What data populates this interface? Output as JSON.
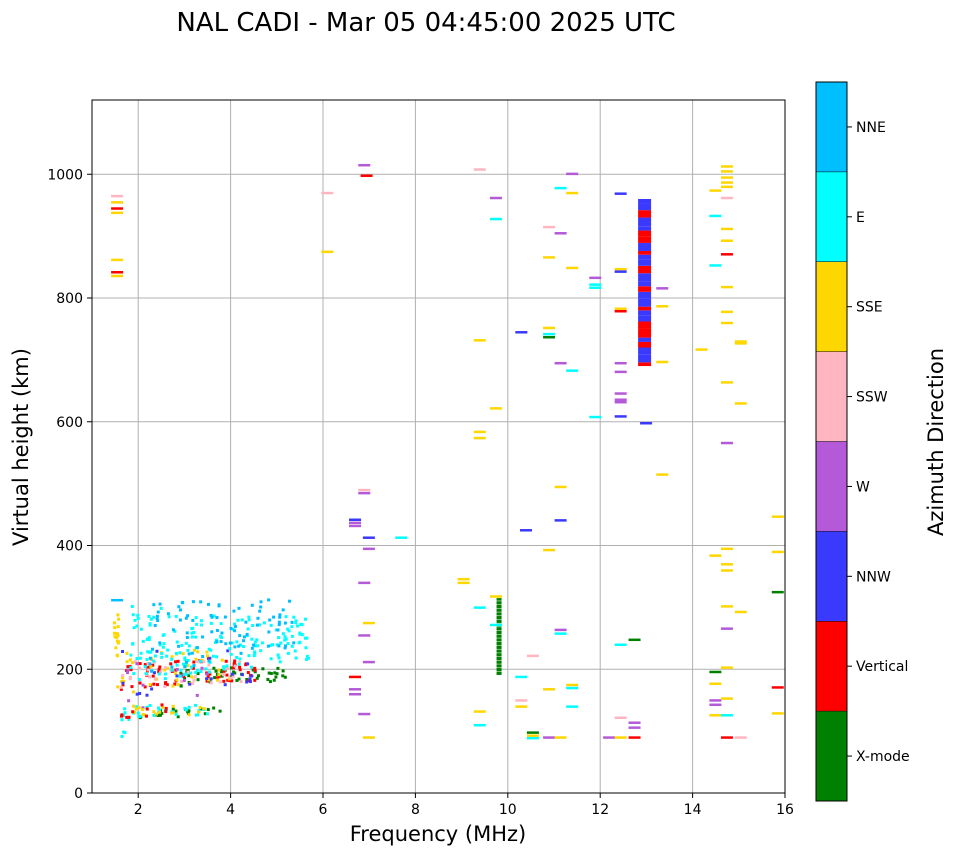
{
  "chart_data": {
    "type": "scatter",
    "title": "NAL CADI - Mar 05 04:45:00 2025 UTC",
    "xlabel": "Frequency (MHz)",
    "ylabel": "Virtual height (km)",
    "xlim": [
      1,
      16
    ],
    "ylim": [
      0,
      1120
    ],
    "xticks": [
      2,
      4,
      6,
      8,
      10,
      12,
      14,
      16
    ],
    "yticks": [
      0,
      200,
      400,
      600,
      800,
      1000
    ],
    "grid": true,
    "colorbar": {
      "label": "Azimuth Direction",
      "categories": [
        {
          "name": "X-mode",
          "color": "#008000"
        },
        {
          "name": "Vertical",
          "color": "#ff0000"
        },
        {
          "name": "NNW",
          "color": "#3a3aff"
        },
        {
          "name": "W",
          "color": "#b45ad8"
        },
        {
          "name": "SSW",
          "color": "#ffb6c1"
        },
        {
          "name": "SSE",
          "color": "#ffd700"
        },
        {
          "name": "E",
          "color": "#00ffff"
        },
        {
          "name": "NNE",
          "color": "#00bfff"
        }
      ]
    },
    "clusters": [
      {
        "name": "lower-cloud-base",
        "category": "X-mode",
        "x_range": [
          2.8,
          5.4
        ],
        "y_range": [
          168,
          200
        ],
        "count": 45,
        "seed": 11
      },
      {
        "name": "lower-cloud-red",
        "category": "Vertical",
        "x_range": [
          1.6,
          4.6
        ],
        "y_range": [
          160,
          215
        ],
        "count": 70,
        "seed": 12
      },
      {
        "name": "lower-cloud-yellow",
        "category": "SSE",
        "x_range": [
          1.5,
          4.0
        ],
        "y_range": [
          150,
          230
        ],
        "count": 45,
        "seed": 13
      },
      {
        "name": "lower-cloud-pink",
        "category": "SSW",
        "x_range": [
          1.6,
          4.2
        ],
        "y_range": [
          160,
          210
        ],
        "count": 35,
        "seed": 14
      },
      {
        "name": "lower-cloud-nnw",
        "category": "NNW",
        "x_range": [
          1.6,
          4.5
        ],
        "y_range": [
          150,
          230
        ],
        "count": 22,
        "seed": 15
      },
      {
        "name": "lower-cloud-w",
        "category": "W",
        "x_range": [
          1.6,
          3.5
        ],
        "y_range": [
          120,
          210
        ],
        "count": 12,
        "seed": 16
      },
      {
        "name": "upper-trace-e",
        "category": "E",
        "x_range": [
          1.8,
          5.7
        ],
        "y_range": [
          175,
          285
        ],
        "count": 170,
        "seed": 17
      },
      {
        "name": "upper-trace-nne",
        "category": "NNE",
        "x_range": [
          2.2,
          5.4
        ],
        "y_range": [
          190,
          310
        ],
        "count": 90,
        "seed": 18
      },
      {
        "name": "echo-band-low",
        "category": "X-mode",
        "x_range": [
          2.0,
          3.8
        ],
        "y_range": [
          118,
          135
        ],
        "count": 20,
        "seed": 19
      },
      {
        "name": "echo-band-low-e",
        "category": "E",
        "x_range": [
          1.6,
          3.5
        ],
        "y_range": [
          115,
          140
        ],
        "count": 30,
        "seed": 20
      },
      {
        "name": "echo-band-low-yellow",
        "category": "SSE",
        "x_range": [
          1.6,
          3.4
        ],
        "y_range": [
          118,
          138
        ],
        "count": 18,
        "seed": 21
      },
      {
        "name": "echo-band-low-red",
        "category": "Vertical",
        "x_range": [
          1.6,
          2.8
        ],
        "y_range": [
          118,
          140
        ],
        "count": 10,
        "seed": 22
      },
      {
        "name": "left-column",
        "category": "SSE",
        "x_range": [
          1.45,
          1.55
        ],
        "y_range": [
          180,
          290
        ],
        "count": 14,
        "seed": 23
      },
      {
        "name": "left-column-e",
        "category": "E",
        "x_range": [
          1.5,
          1.7
        ],
        "y_range": [
          85,
          100
        ],
        "count": 3,
        "seed": 24
      },
      {
        "name": "scatter-top-e",
        "category": "E",
        "x_range": [
          1.8,
          2.5
        ],
        "y_range": [
          230,
          300
        ],
        "count": 12,
        "seed": 25
      }
    ],
    "column": [
      {
        "category": "Vertical",
        "x": 12.95,
        "y_start": 690,
        "y_end": 960
      },
      {
        "category": "NNW",
        "x": 12.95,
        "y_start": 690,
        "y_end": 960
      }
    ],
    "column_x_mode": {
      "category": "X-mode",
      "x": 9.8,
      "y_start": 190,
      "y_end": 315
    },
    "points": [
      {
        "x": 1.5,
        "y": 965,
        "c": "SSW"
      },
      {
        "x": 1.5,
        "y": 955,
        "c": "SSE"
      },
      {
        "x": 1.5,
        "y": 945,
        "c": "Vertical"
      },
      {
        "x": 1.5,
        "y": 938,
        "c": "SSE"
      },
      {
        "x": 1.5,
        "y": 862,
        "c": "SSE"
      },
      {
        "x": 1.5,
        "y": 842,
        "c": "Vertical"
      },
      {
        "x": 1.5,
        "y": 836,
        "c": "SSE"
      },
      {
        "x": 1.5,
        "y": 312,
        "c": "NNE"
      },
      {
        "x": 6.05,
        "y": 970,
        "c": "SSW"
      },
      {
        "x": 6.05,
        "y": 875,
        "c": "SSE"
      },
      {
        "x": 6.85,
        "y": 1015,
        "c": "W"
      },
      {
        "x": 6.9,
        "y": 998,
        "c": "Vertical"
      },
      {
        "x": 6.85,
        "y": 490,
        "c": "SSW"
      },
      {
        "x": 6.85,
        "y": 485,
        "c": "W"
      },
      {
        "x": 6.65,
        "y": 442,
        "c": "NNW"
      },
      {
        "x": 6.65,
        "y": 437,
        "c": "W"
      },
      {
        "x": 6.65,
        "y": 432,
        "c": "W"
      },
      {
        "x": 6.95,
        "y": 413,
        "c": "NNW"
      },
      {
        "x": 7.65,
        "y": 413,
        "c": "E"
      },
      {
        "x": 6.95,
        "y": 395,
        "c": "W"
      },
      {
        "x": 6.85,
        "y": 340,
        "c": "W"
      },
      {
        "x": 6.95,
        "y": 275,
        "c": "SSE"
      },
      {
        "x": 6.85,
        "y": 255,
        "c": "W"
      },
      {
        "x": 6.95,
        "y": 212,
        "c": "W"
      },
      {
        "x": 6.65,
        "y": 188,
        "c": "Vertical"
      },
      {
        "x": 6.65,
        "y": 168,
        "c": "W"
      },
      {
        "x": 6.65,
        "y": 160,
        "c": "W"
      },
      {
        "x": 6.85,
        "y": 128,
        "c": "W"
      },
      {
        "x": 6.95,
        "y": 90,
        "c": "SSE"
      },
      {
        "x": 9.0,
        "y": 346,
        "c": "SSE"
      },
      {
        "x": 9.0,
        "y": 340,
        "c": "SSE"
      },
      {
        "x": 9.35,
        "y": 1008,
        "c": "SSW"
      },
      {
        "x": 9.35,
        "y": 732,
        "c": "SSE"
      },
      {
        "x": 9.35,
        "y": 584,
        "c": "SSE"
      },
      {
        "x": 9.35,
        "y": 574,
        "c": "SSE"
      },
      {
        "x": 9.35,
        "y": 300,
        "c": "E"
      },
      {
        "x": 9.35,
        "y": 132,
        "c": "SSE"
      },
      {
        "x": 9.35,
        "y": 110,
        "c": "E"
      },
      {
        "x": 9.7,
        "y": 962,
        "c": "W"
      },
      {
        "x": 9.7,
        "y": 928,
        "c": "E"
      },
      {
        "x": 9.7,
        "y": 622,
        "c": "SSE"
      },
      {
        "x": 9.7,
        "y": 318,
        "c": "SSE"
      },
      {
        "x": 9.7,
        "y": 272,
        "c": "E"
      },
      {
        "x": 10.25,
        "y": 745,
        "c": "NNW"
      },
      {
        "x": 10.35,
        "y": 425,
        "c": "NNW"
      },
      {
        "x": 10.25,
        "y": 188,
        "c": "E"
      },
      {
        "x": 10.25,
        "y": 150,
        "c": "SSW"
      },
      {
        "x": 10.25,
        "y": 140,
        "c": "SSE"
      },
      {
        "x": 10.5,
        "y": 222,
        "c": "SSW"
      },
      {
        "x": 10.5,
        "y": 98,
        "c": "X-mode"
      },
      {
        "x": 10.5,
        "y": 93,
        "c": "SSE"
      },
      {
        "x": 10.5,
        "y": 89,
        "c": "E"
      },
      {
        "x": 10.85,
        "y": 915,
        "c": "SSW"
      },
      {
        "x": 10.85,
        "y": 866,
        "c": "SSE"
      },
      {
        "x": 10.85,
        "y": 752,
        "c": "SSE"
      },
      {
        "x": 10.85,
        "y": 742,
        "c": "E"
      },
      {
        "x": 10.85,
        "y": 737,
        "c": "X-mode"
      },
      {
        "x": 10.85,
        "y": 393,
        "c": "SSE"
      },
      {
        "x": 10.85,
        "y": 168,
        "c": "SSE"
      },
      {
        "x": 10.85,
        "y": 90,
        "c": "W"
      },
      {
        "x": 11.1,
        "y": 978,
        "c": "E"
      },
      {
        "x": 11.1,
        "y": 905,
        "c": "W"
      },
      {
        "x": 11.1,
        "y": 695,
        "c": "W"
      },
      {
        "x": 11.1,
        "y": 495,
        "c": "SSE"
      },
      {
        "x": 11.1,
        "y": 441,
        "c": "NNW"
      },
      {
        "x": 11.1,
        "y": 264,
        "c": "W"
      },
      {
        "x": 11.1,
        "y": 258,
        "c": "E"
      },
      {
        "x": 11.1,
        "y": 90,
        "c": "SSE"
      },
      {
        "x": 11.35,
        "y": 1001,
        "c": "W"
      },
      {
        "x": 11.35,
        "y": 970,
        "c": "SSE"
      },
      {
        "x": 11.35,
        "y": 849,
        "c": "SSE"
      },
      {
        "x": 11.35,
        "y": 683,
        "c": "E"
      },
      {
        "x": 11.35,
        "y": 175,
        "c": "SSE"
      },
      {
        "x": 11.35,
        "y": 170,
        "c": "E"
      },
      {
        "x": 11.35,
        "y": 140,
        "c": "E"
      },
      {
        "x": 11.85,
        "y": 833,
        "c": "W"
      },
      {
        "x": 11.85,
        "y": 822,
        "c": "E"
      },
      {
        "x": 11.85,
        "y": 817,
        "c": "E"
      },
      {
        "x": 11.85,
        "y": 608,
        "c": "E"
      },
      {
        "x": 12.15,
        "y": 90,
        "c": "W"
      },
      {
        "x": 12.4,
        "y": 969,
        "c": "NNW"
      },
      {
        "x": 12.4,
        "y": 847,
        "c": "SSE"
      },
      {
        "x": 12.4,
        "y": 843,
        "c": "NNW"
      },
      {
        "x": 12.4,
        "y": 783,
        "c": "SSE"
      },
      {
        "x": 12.4,
        "y": 779,
        "c": "Vertical"
      },
      {
        "x": 12.4,
        "y": 695,
        "c": "W"
      },
      {
        "x": 12.4,
        "y": 681,
        "c": "W"
      },
      {
        "x": 12.4,
        "y": 646,
        "c": "W"
      },
      {
        "x": 12.4,
        "y": 636,
        "c": "W"
      },
      {
        "x": 12.4,
        "y": 632,
        "c": "W"
      },
      {
        "x": 12.4,
        "y": 609,
        "c": "NNW"
      },
      {
        "x": 12.4,
        "y": 240,
        "c": "E"
      },
      {
        "x": 12.4,
        "y": 122,
        "c": "SSW"
      },
      {
        "x": 12.4,
        "y": 90,
        "c": "SSE"
      },
      {
        "x": 12.7,
        "y": 248,
        "c": "X-mode"
      },
      {
        "x": 12.7,
        "y": 114,
        "c": "W"
      },
      {
        "x": 12.7,
        "y": 106,
        "c": "W"
      },
      {
        "x": 12.7,
        "y": 90,
        "c": "Vertical"
      },
      {
        "x": 12.95,
        "y": 598,
        "c": "NNW"
      },
      {
        "x": 13.3,
        "y": 816,
        "c": "W"
      },
      {
        "x": 13.3,
        "y": 787,
        "c": "SSE"
      },
      {
        "x": 13.3,
        "y": 697,
        "c": "SSE"
      },
      {
        "x": 13.3,
        "y": 515,
        "c": "SSE"
      },
      {
        "x": 14.15,
        "y": 717,
        "c": "SSE"
      },
      {
        "x": 14.45,
        "y": 974,
        "c": "SSE"
      },
      {
        "x": 14.45,
        "y": 933,
        "c": "E"
      },
      {
        "x": 14.45,
        "y": 853,
        "c": "E"
      },
      {
        "x": 14.45,
        "y": 384,
        "c": "SSE"
      },
      {
        "x": 14.45,
        "y": 196,
        "c": "X-mode"
      },
      {
        "x": 14.45,
        "y": 177,
        "c": "SSE"
      },
      {
        "x": 14.45,
        "y": 150,
        "c": "W"
      },
      {
        "x": 14.45,
        "y": 143,
        "c": "W"
      },
      {
        "x": 14.45,
        "y": 126,
        "c": "SSE"
      },
      {
        "x": 14.7,
        "y": 1013,
        "c": "SSE"
      },
      {
        "x": 14.7,
        "y": 1005,
        "c": "SSE"
      },
      {
        "x": 14.7,
        "y": 995,
        "c": "SSE"
      },
      {
        "x": 14.7,
        "y": 987,
        "c": "SSE"
      },
      {
        "x": 14.7,
        "y": 980,
        "c": "SSE"
      },
      {
        "x": 14.7,
        "y": 962,
        "c": "SSW"
      },
      {
        "x": 14.7,
        "y": 912,
        "c": "SSE"
      },
      {
        "x": 14.7,
        "y": 893,
        "c": "SSE"
      },
      {
        "x": 14.7,
        "y": 871,
        "c": "Vertical"
      },
      {
        "x": 14.7,
        "y": 818,
        "c": "SSE"
      },
      {
        "x": 14.7,
        "y": 778,
        "c": "SSE"
      },
      {
        "x": 14.7,
        "y": 760,
        "c": "SSE"
      },
      {
        "x": 14.7,
        "y": 664,
        "c": "SSE"
      },
      {
        "x": 14.7,
        "y": 566,
        "c": "W"
      },
      {
        "x": 14.7,
        "y": 395,
        "c": "SSE"
      },
      {
        "x": 14.7,
        "y": 370,
        "c": "SSE"
      },
      {
        "x": 14.7,
        "y": 360,
        "c": "SSE"
      },
      {
        "x": 14.7,
        "y": 302,
        "c": "SSE"
      },
      {
        "x": 14.7,
        "y": 266,
        "c": "W"
      },
      {
        "x": 14.7,
        "y": 203,
        "c": "SSE"
      },
      {
        "x": 14.7,
        "y": 153,
        "c": "SSE"
      },
      {
        "x": 14.7,
        "y": 126,
        "c": "E"
      },
      {
        "x": 14.7,
        "y": 90,
        "c": "Vertical"
      },
      {
        "x": 15.0,
        "y": 730,
        "c": "SSE"
      },
      {
        "x": 15.0,
        "y": 727,
        "c": "SSE"
      },
      {
        "x": 15.0,
        "y": 630,
        "c": "SSE"
      },
      {
        "x": 15.0,
        "y": 293,
        "c": "SSE"
      },
      {
        "x": 15.0,
        "y": 90,
        "c": "SSW"
      },
      {
        "x": 15.8,
        "y": 447,
        "c": "SSE"
      },
      {
        "x": 15.8,
        "y": 390,
        "c": "SSE"
      },
      {
        "x": 15.8,
        "y": 325,
        "c": "X-mode"
      },
      {
        "x": 15.8,
        "y": 171,
        "c": "Vertical"
      },
      {
        "x": 15.8,
        "y": 129,
        "c": "SSE"
      }
    ]
  }
}
